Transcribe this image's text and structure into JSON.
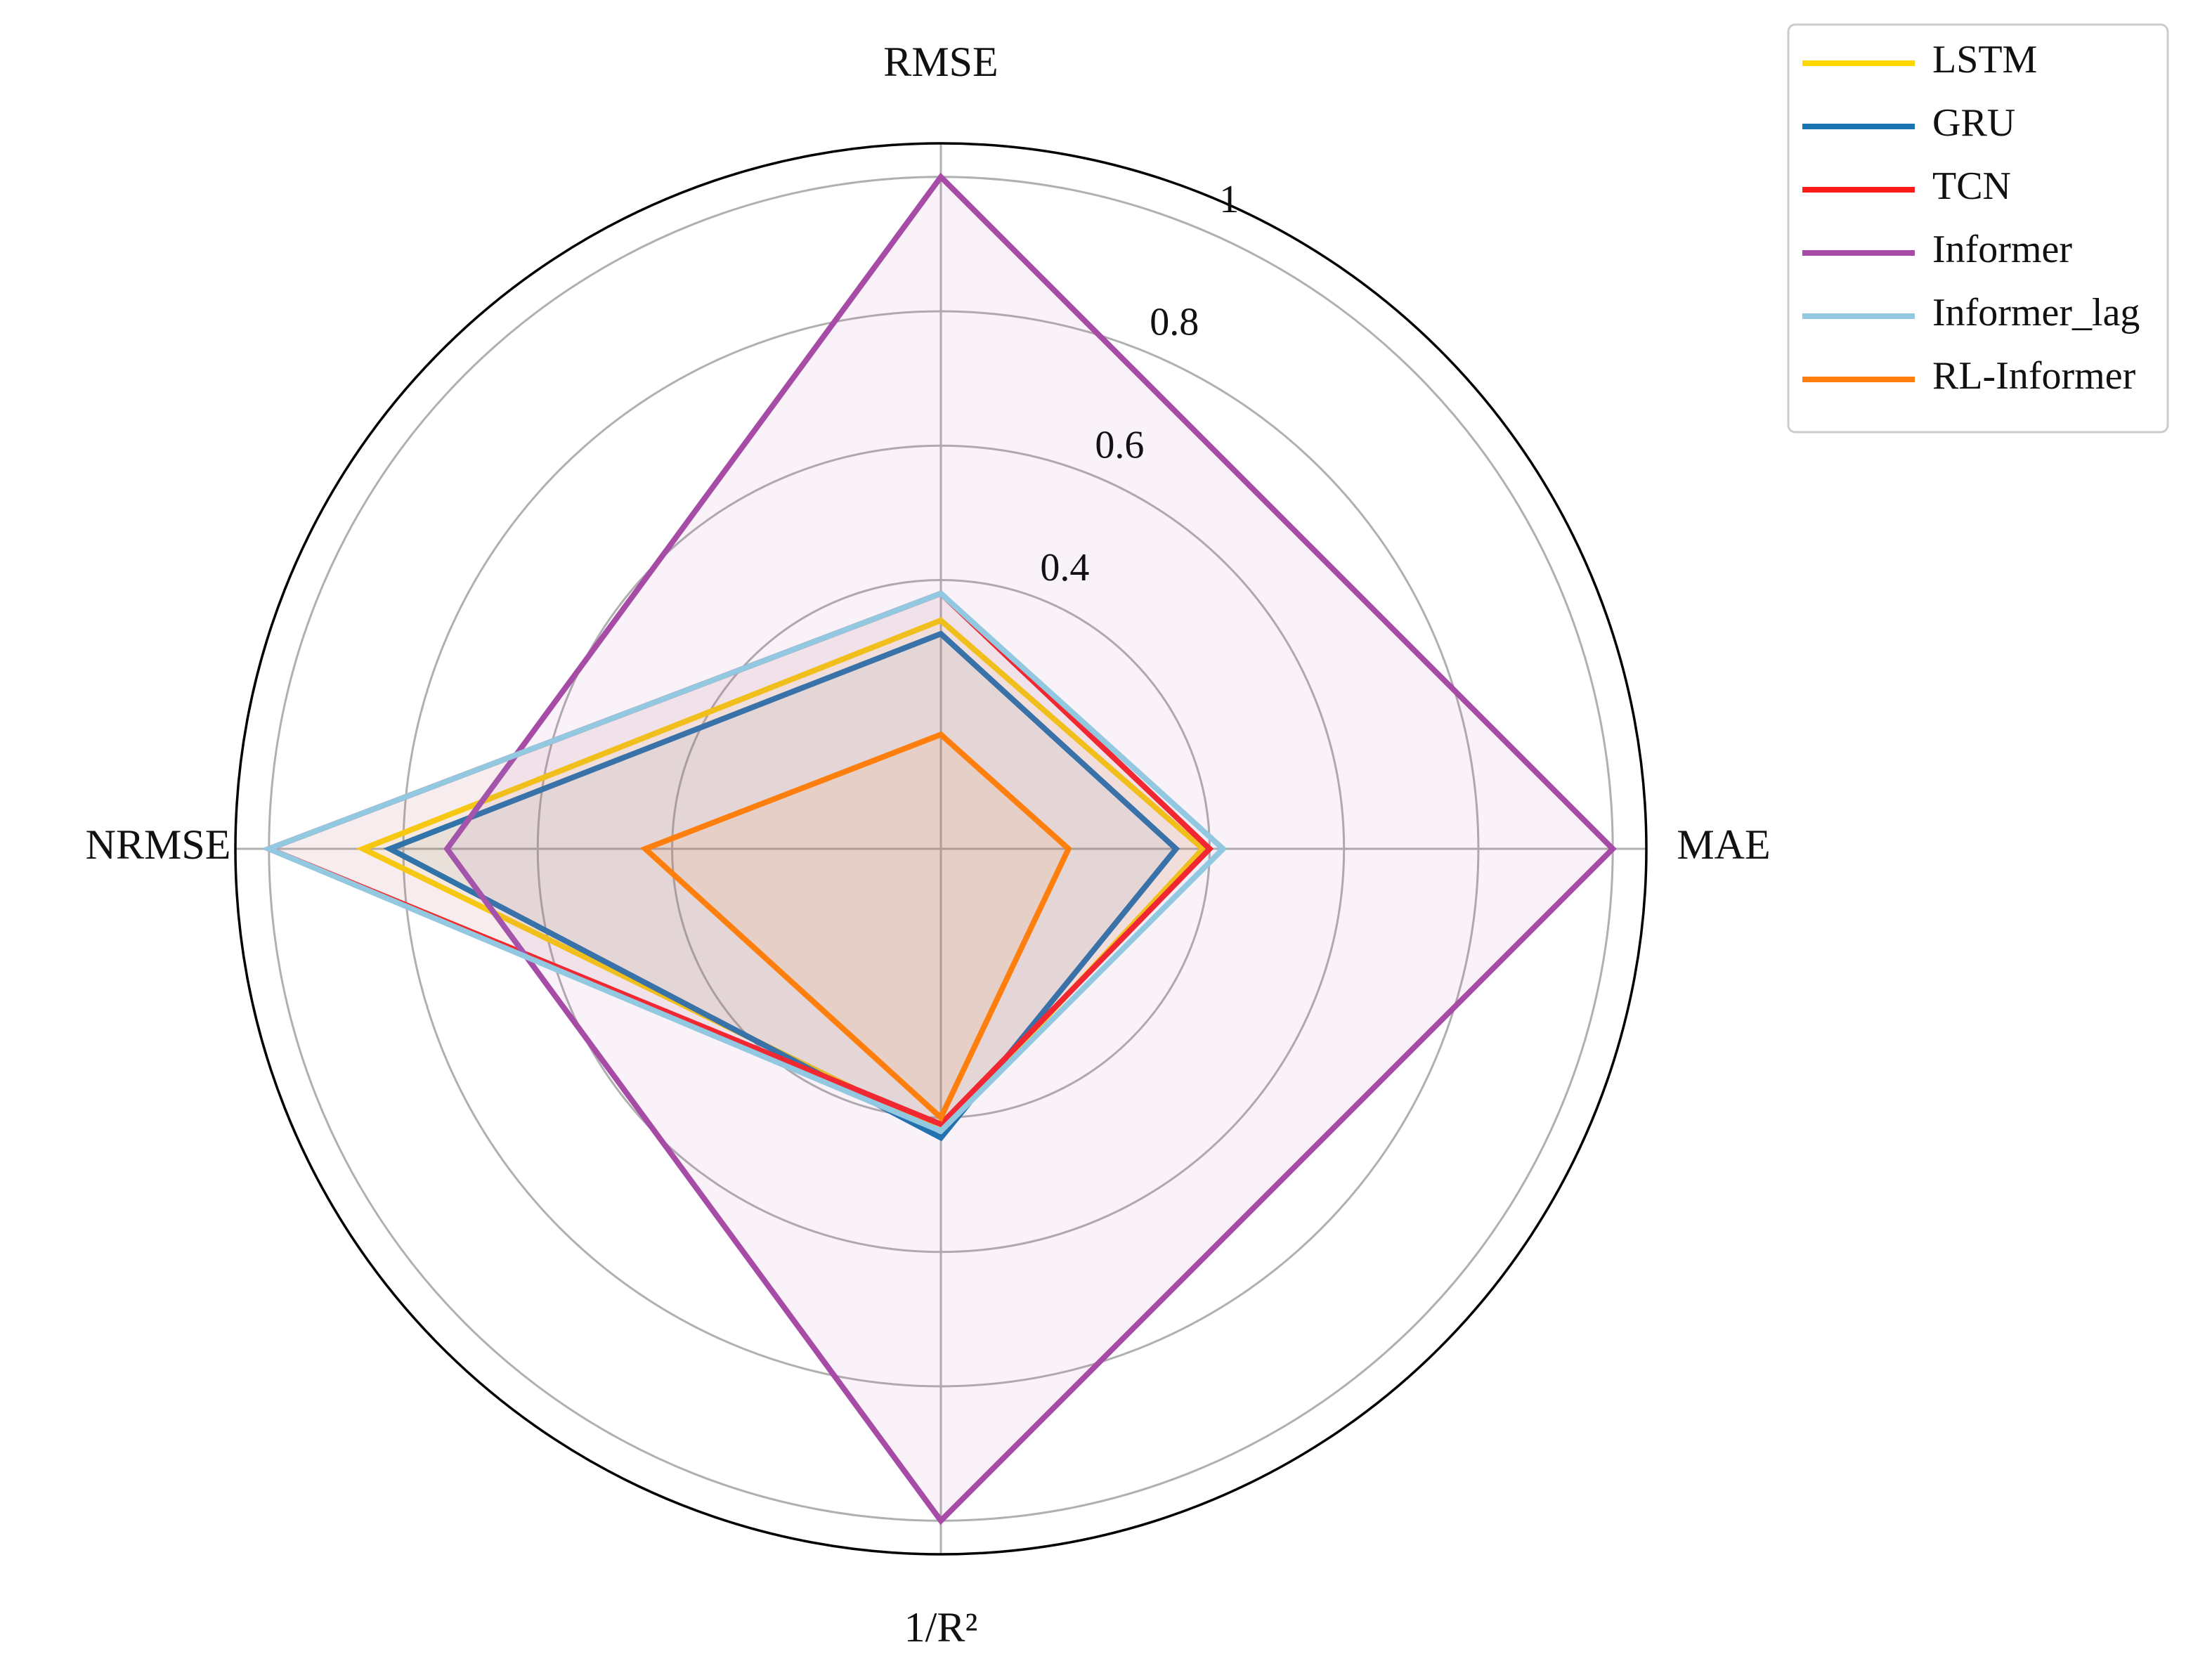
{
  "chart_data": {
    "type": "radar",
    "categories": [
      "RMSE",
      "MAE",
      "1/R²",
      "NRMSE"
    ],
    "series": [
      {
        "name": "LSTM",
        "color": "#ffd700",
        "values": [
          0.34,
          0.39,
          0.42,
          0.86
        ]
      },
      {
        "name": "GRU",
        "color": "#1a75b0",
        "values": [
          0.32,
          0.35,
          0.43,
          0.82
        ]
      },
      {
        "name": "TCN",
        "color": "#ff1a1a",
        "values": [
          0.38,
          0.4,
          0.41,
          1.0
        ]
      },
      {
        "name": "Informer",
        "color": "#a64ca6",
        "values": [
          1.0,
          1.0,
          1.0,
          0.735
        ]
      },
      {
        "name": "Informer_lag",
        "color": "#92c8e0",
        "values": [
          0.38,
          0.42,
          0.42,
          1.0
        ]
      },
      {
        "name": "RL-Informer",
        "color": "#ff7f0e",
        "values": [
          0.17,
          0.19,
          0.4,
          0.44
        ]
      }
    ],
    "ylim": [
      0,
      1.05
    ],
    "yticks": [
      0.4,
      0.6,
      0.8,
      1.0
    ],
    "grid": true,
    "legend": "upper right"
  }
}
